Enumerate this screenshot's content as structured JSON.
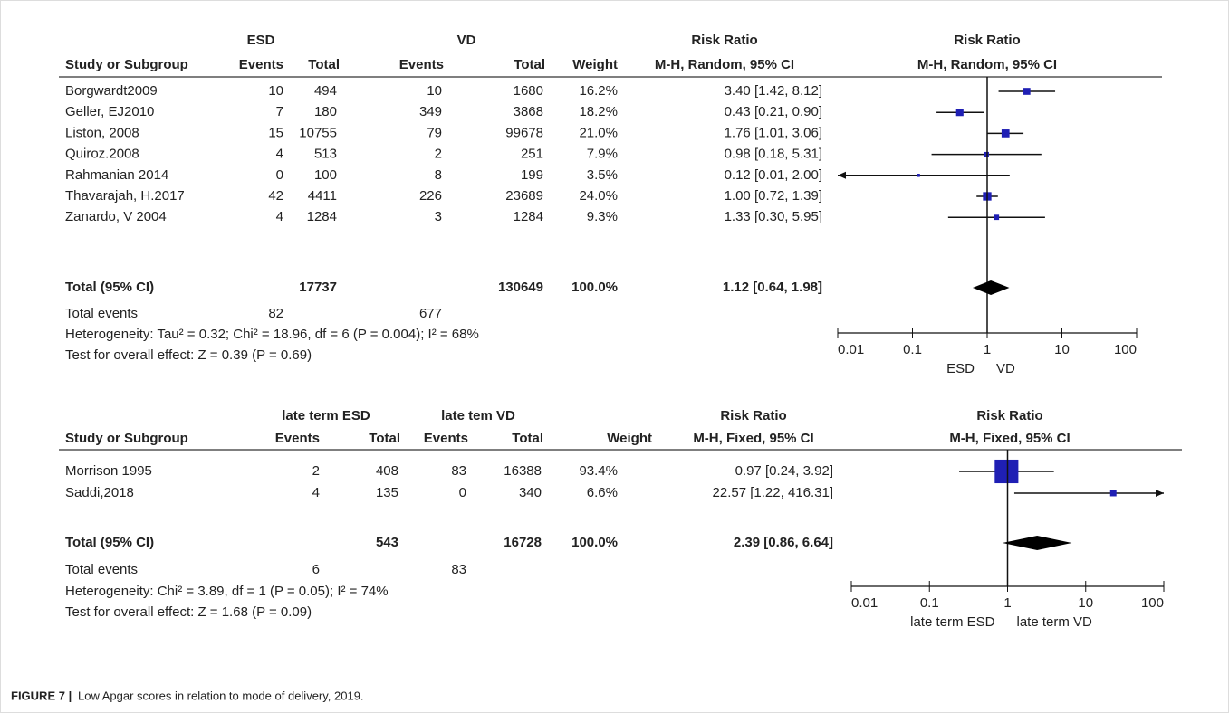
{
  "panels": [
    {
      "type": "forest",
      "groups": [
        "ESD",
        "VD"
      ],
      "columns": [
        "Study or Subgroup",
        "Events",
        "Total",
        "Events",
        "Total",
        "Weight"
      ],
      "rr_header": [
        "Risk Ratio",
        "M-H, Random, 95% CI"
      ],
      "plot_header": [
        "Risk Ratio",
        "M-H, Random, 95% CI"
      ],
      "rows": [
        {
          "study": "Borgwardt2009",
          "esd_events": 10,
          "esd_total": 494,
          "vd_events": 10,
          "vd_total": 1680,
          "weight": {
            "value": 16.2,
            "label": "16.2%"
          },
          "rr": 3.4,
          "lo": 1.42,
          "hi": 8.12,
          "ci_label": "3.40 [1.42, 8.12]"
        },
        {
          "study": "Geller, EJ2010",
          "esd_events": 7,
          "esd_total": 180,
          "vd_events": 349,
          "vd_total": 3868,
          "weight": {
            "value": 18.2,
            "label": "18.2%"
          },
          "rr": 0.43,
          "lo": 0.21,
          "hi": 0.9,
          "ci_label": "0.43 [0.21, 0.90]"
        },
        {
          "study": "Liston, 2008",
          "esd_events": 15,
          "esd_total": 10755,
          "vd_events": 79,
          "vd_total": 99678,
          "weight": {
            "value": 21.0,
            "label": "21.0%"
          },
          "rr": 1.76,
          "lo": 1.01,
          "hi": 3.06,
          "ci_label": "1.76 [1.01, 3.06]"
        },
        {
          "study": "Quiroz.2008",
          "esd_events": 4,
          "esd_total": 513,
          "vd_events": 2,
          "vd_total": 251,
          "weight": {
            "value": 7.9,
            "label": "7.9%"
          },
          "rr": 0.98,
          "lo": 0.18,
          "hi": 5.31,
          "ci_label": "0.98 [0.18, 5.31]"
        },
        {
          "study": "Rahmanian 2014",
          "esd_events": 0,
          "esd_total": 100,
          "vd_events": 8,
          "vd_total": 199,
          "weight": {
            "value": 3.5,
            "label": "3.5%"
          },
          "rr": 0.12,
          "lo": 0.01,
          "hi": 2.0,
          "ci_label": "0.12 [0.01, 2.00]"
        },
        {
          "study": "Thavarajah, H.2017",
          "esd_events": 42,
          "esd_total": 4411,
          "vd_events": 226,
          "vd_total": 23689,
          "weight": {
            "value": 24.0,
            "label": "24.0%"
          },
          "rr": 1.0,
          "lo": 0.72,
          "hi": 1.39,
          "ci_label": "1.00 [0.72, 1.39]"
        },
        {
          "study": "Zanardo, V 2004",
          "esd_events": 4,
          "esd_total": 1284,
          "vd_events": 3,
          "vd_total": 1284,
          "weight": {
            "value": 9.3,
            "label": "9.3%"
          },
          "rr": 1.33,
          "lo": 0.3,
          "hi": 5.95,
          "ci_label": "1.33 [0.30, 5.95]"
        }
      ],
      "total": {
        "label": "Total (95% CI)",
        "esd_total": 17737,
        "vd_total": 130649,
        "weight": {
          "value": 100.0,
          "label": "100.0%"
        },
        "rr": 1.12,
        "lo": 0.64,
        "hi": 1.98,
        "ci_label": "1.12 [0.64, 1.98]"
      },
      "total_events": {
        "label": "Total events",
        "esd": 82,
        "vd": 677
      },
      "heterogeneity": "Heterogeneity: Tau² = 0.32; Chi² = 18.96, df = 6 (P = 0.004); I² = 68%",
      "overall_test": "Test for overall effect: Z = 0.39 (P = 0.69)",
      "log_x": true,
      "xlim": [
        0.01,
        100
      ],
      "xticks": [
        0.01,
        0.1,
        1,
        10,
        100
      ],
      "axis_labels": [
        "ESD",
        "VD"
      ],
      "color": "#1f1fb4"
    },
    {
      "type": "forest",
      "groups": [
        "late term ESD",
        "late tem VD"
      ],
      "columns": [
        "Study or Subgroup",
        "Events",
        "Total",
        "Events",
        "Total",
        "Weight"
      ],
      "rr_header": [
        "Risk Ratio",
        "M-H, Fixed, 95% CI"
      ],
      "plot_header": [
        "Risk Ratio",
        "M-H, Fixed, 95% CI"
      ],
      "rows": [
        {
          "study": "Morrison 1995",
          "esd_events": 2,
          "esd_total": 408,
          "vd_events": 83,
          "vd_total": 16388,
          "weight": {
            "value": 93.4,
            "label": "93.4%"
          },
          "rr": 0.97,
          "lo": 0.24,
          "hi": 3.92,
          "ci_label": "0.97 [0.24, 3.92]"
        },
        {
          "study": "Saddi,2018",
          "esd_events": 4,
          "esd_total": 135,
          "vd_events": 0,
          "vd_total": 340,
          "weight": {
            "value": 6.6,
            "label": "6.6%"
          },
          "rr": 22.57,
          "lo": 1.22,
          "hi": 416.31,
          "ci_label": "22.57 [1.22, 416.31]"
        }
      ],
      "total": {
        "label": "Total (95% CI)",
        "esd_total": 543,
        "vd_total": 16728,
        "weight": {
          "value": 100.0,
          "label": "100.0%"
        },
        "rr": 2.39,
        "lo": 0.86,
        "hi": 6.64,
        "ci_label": "2.39 [0.86, 6.64]"
      },
      "total_events": {
        "label": "Total events",
        "esd": 6,
        "vd": 83
      },
      "heterogeneity": "Heterogeneity: Chi² = 3.89, df = 1 (P = 0.05); I² = 74%",
      "overall_test": "Test for overall effect: Z = 1.68 (P = 0.09)",
      "log_x": true,
      "xlim": [
        0.01,
        100
      ],
      "xticks": [
        0.01,
        0.1,
        1,
        10,
        100
      ],
      "axis_labels": [
        "late term ESD",
        "late term VD"
      ],
      "color": "#1f1fb4"
    }
  ],
  "caption": {
    "label": "FIGURE 7 |",
    "text": "Low Apgar scores in relation to mode of delivery, 2019."
  }
}
